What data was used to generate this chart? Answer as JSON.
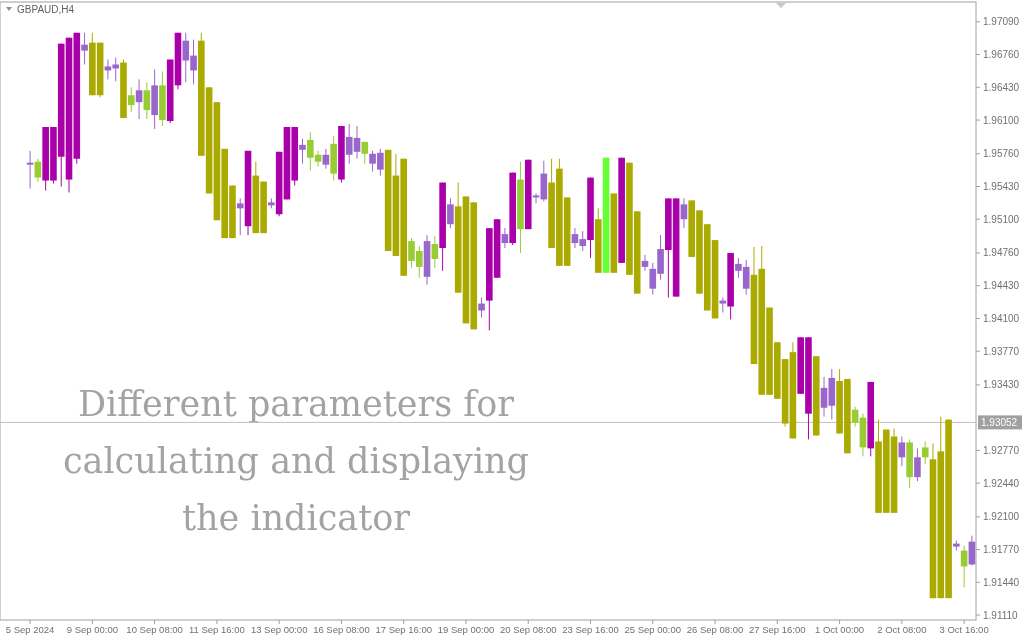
{
  "chart_data": {
    "type": "candlestick",
    "title": "GBPAUD,H4",
    "annotations": [
      "Different parameters for calculating and displaying the indicator"
    ],
    "categories": [
      "5 Sep 2024",
      null,
      null,
      null,
      null,
      null,
      null,
      null,
      "9 Sep 00:00",
      null,
      null,
      null,
      null,
      null,
      null,
      null,
      "10 Sep 08:00",
      null,
      null,
      null,
      null,
      null,
      null,
      null,
      "11 Sep 16:00",
      null,
      null,
      null,
      null,
      null,
      null,
      null,
      "13 Sep 00:00",
      null,
      null,
      null,
      null,
      null,
      null,
      null,
      "16 Sep 08:00",
      null,
      null,
      null,
      null,
      null,
      null,
      null,
      "17 Sep 16:00",
      null,
      null,
      null,
      null,
      null,
      null,
      null,
      "19 Sep 00:00",
      null,
      null,
      null,
      null,
      null,
      null,
      null,
      "20 Sep 08:00",
      null,
      null,
      null,
      null,
      null,
      null,
      null,
      "23 Sep 16:00",
      null,
      null,
      null,
      null,
      null,
      null,
      null,
      "25 Sep 00:00",
      null,
      null,
      null,
      null,
      null,
      null,
      null,
      "26 Sep 08:00",
      null,
      null,
      null,
      null,
      null,
      null,
      null,
      "27 Sep 16:00",
      null,
      null,
      null,
      null,
      null,
      null,
      null,
      "1 Oct 00:00",
      null,
      null,
      null,
      null,
      null,
      null,
      null,
      "2 Oct 08:00",
      null,
      null,
      null,
      null,
      null,
      null,
      null,
      "3 Oct 16:00",
      null
    ],
    "ohlc": [
      [
        1.9565,
        1.9579,
        1.9541,
        1.9567
      ],
      [
        1.9568,
        1.9571,
        1.9548,
        1.9552
      ],
      [
        1.9549,
        1.9603,
        1.9539,
        1.9603
      ],
      [
        1.9549,
        1.9603,
        1.9546,
        1.9603
      ],
      [
        1.9573,
        1.9687,
        1.9543,
        1.9687
      ],
      [
        1.955,
        1.9693,
        1.9537,
        1.9693
      ],
      [
        1.9571,
        1.9698,
        1.9566,
        1.9698
      ],
      [
        1.968,
        1.9698,
        1.9666,
        1.9686
      ],
      [
        1.9688,
        1.9698,
        1.9635,
        1.9635
      ],
      [
        1.9688,
        1.9688,
        1.9633,
        1.9635
      ],
      [
        1.966,
        1.9671,
        1.9651,
        1.9664
      ],
      [
        1.9662,
        1.9673,
        1.9649,
        1.9666
      ],
      [
        1.9668,
        1.9671,
        1.9612,
        1.9612
      ],
      [
        1.9635,
        1.9643,
        1.9618,
        1.9625
      ],
      [
        1.9628,
        1.9651,
        1.9611,
        1.964
      ],
      [
        1.964,
        1.9648,
        1.9611,
        1.962
      ],
      [
        1.9615,
        1.9661,
        1.9601,
        1.9645
      ],
      [
        1.9645,
        1.9659,
        1.9604,
        1.961
      ],
      [
        1.9609,
        1.9671,
        1.9607,
        1.9671
      ],
      [
        1.9645,
        1.9698,
        1.9641,
        1.9698
      ],
      [
        1.967,
        1.9698,
        1.9648,
        1.969
      ],
      [
        1.966,
        1.9691,
        1.9646,
        1.9675
      ],
      [
        1.969,
        1.9698,
        1.9574,
        1.9574
      ],
      [
        1.9643,
        1.9643,
        1.9536,
        1.9536
      ],
      [
        1.9628,
        1.9628,
        1.9509,
        1.9509
      ],
      [
        1.9581,
        1.9581,
        1.9491,
        1.9491
      ],
      [
        1.9544,
        1.9544,
        1.9491,
        1.9491
      ],
      [
        1.9521,
        1.9531,
        1.9494,
        1.9526
      ],
      [
        1.9503,
        1.9579,
        1.9494,
        1.9579
      ],
      [
        1.9554,
        1.9568,
        1.9496,
        1.9496
      ],
      [
        1.9548,
        1.9548,
        1.9496,
        1.9496
      ],
      [
        1.9524,
        1.9531,
        1.9521,
        1.9527
      ],
      [
        1.9515,
        1.9578,
        1.9513,
        1.9578
      ],
      [
        1.953,
        1.9603,
        1.953,
        1.9603
      ],
      [
        1.9549,
        1.9603,
        1.9544,
        1.9603
      ],
      [
        1.958,
        1.9591,
        1.9566,
        1.9585
      ],
      [
        1.959,
        1.9598,
        1.9559,
        1.9572
      ],
      [
        1.9575,
        1.9579,
        1.9563,
        1.9568
      ],
      [
        1.9565,
        1.9581,
        1.9561,
        1.9575
      ],
      [
        1.9586,
        1.9594,
        1.9549,
        1.9556
      ],
      [
        1.955,
        1.9604,
        1.9547,
        1.9604
      ],
      [
        1.9575,
        1.9606,
        1.9566,
        1.9593
      ],
      [
        1.9578,
        1.9604,
        1.9571,
        1.9592
      ],
      [
        1.9588,
        1.9588,
        1.9566,
        1.9576
      ],
      [
        1.9566,
        1.9579,
        1.9558,
        1.9576
      ],
      [
        1.956,
        1.9581,
        1.9554,
        1.9577
      ],
      [
        1.958,
        1.958,
        1.9478,
        1.9478
      ],
      [
        1.9554,
        1.9576,
        1.9473,
        1.9473
      ],
      [
        1.9571,
        1.9571,
        1.9453,
        1.9453
      ],
      [
        1.9488,
        1.9491,
        1.9461,
        1.9468
      ],
      [
        1.9478,
        1.9483,
        1.9451,
        1.9462
      ],
      [
        1.9452,
        1.9494,
        1.9444,
        1.9488
      ],
      [
        1.9485,
        1.9493,
        1.9461,
        1.947
      ],
      [
        1.9481,
        1.9547,
        1.9458,
        1.9547
      ],
      [
        1.9505,
        1.9531,
        1.9501,
        1.9525
      ],
      [
        1.9523,
        1.9547,
        1.9436,
        1.9436
      ],
      [
        1.9533,
        1.9533,
        1.9405,
        1.9405
      ],
      [
        1.9527,
        1.9527,
        1.9399,
        1.9399
      ],
      [
        1.9418,
        1.9431,
        1.9411,
        1.9425
      ],
      [
        1.9428,
        1.9501,
        1.9398,
        1.9501
      ],
      [
        1.9451,
        1.951,
        1.9451,
        1.951
      ],
      [
        1.9486,
        1.9501,
        1.9481,
        1.9495
      ],
      [
        1.9486,
        1.9557,
        1.9484,
        1.9557
      ],
      [
        1.955,
        1.9568,
        1.9476,
        1.95
      ],
      [
        1.95,
        1.957,
        1.95,
        1.957
      ],
      [
        1.9532,
        1.9536,
        1.9526,
        1.9534
      ],
      [
        1.953,
        1.9569,
        1.9528,
        1.9556
      ],
      [
        1.9547,
        1.9571,
        1.9481,
        1.9481
      ],
      [
        1.9561,
        1.9571,
        1.9463,
        1.9463
      ],
      [
        1.9532,
        1.9532,
        1.9463,
        1.9463
      ],
      [
        1.9486,
        1.9501,
        1.9481,
        1.9495
      ],
      [
        1.9483,
        1.9498,
        1.9478,
        1.949
      ],
      [
        1.9489,
        1.9552,
        1.9471,
        1.9552
      ],
      [
        1.951,
        1.9521,
        1.9456,
        1.9456
      ],
      [
        1.9456,
        1.9572,
        1.9456,
        1.9572
      ],
      [
        1.9536,
        1.9536,
        1.9456,
        1.9456
      ],
      [
        1.9466,
        1.9572,
        1.9466,
        1.9572
      ],
      [
        1.9567,
        1.9567,
        1.9454,
        1.9454
      ],
      [
        1.9518,
        1.9518,
        1.9435,
        1.9435
      ],
      [
        1.9462,
        1.9474,
        1.9458,
        1.9468
      ],
      [
        1.944,
        1.9466,
        1.9434,
        1.946
      ],
      [
        1.9455,
        1.9494,
        1.9449,
        1.948
      ],
      [
        1.9479,
        1.9531,
        1.9431,
        1.9531
      ],
      [
        1.9432,
        1.9531,
        1.9432,
        1.9531
      ],
      [
        1.951,
        1.9531,
        1.9501,
        1.9525
      ],
      [
        1.9529,
        1.9529,
        1.9472,
        1.9472
      ],
      [
        1.9519,
        1.9519,
        1.9435,
        1.9435
      ],
      [
        1.9505,
        1.9505,
        1.9418,
        1.9418
      ],
      [
        1.9489,
        1.9489,
        1.941,
        1.941
      ],
      [
        1.9425,
        1.9431,
        1.9416,
        1.9428
      ],
      [
        1.9422,
        1.9476,
        1.9409,
        1.9476
      ],
      [
        1.9458,
        1.9471,
        1.9451,
        1.9465
      ],
      [
        1.944,
        1.9469,
        1.9434,
        1.9462
      ],
      [
        1.9454,
        1.9482,
        1.9364,
        1.9364
      ],
      [
        1.946,
        1.9483,
        1.9333,
        1.9333
      ],
      [
        1.9421,
        1.9421,
        1.9333,
        1.9333
      ],
      [
        1.9386,
        1.9386,
        1.9329,
        1.9329
      ],
      [
        1.9369,
        1.9369,
        1.9301,
        1.9304
      ],
      [
        1.9376,
        1.9386,
        1.9289,
        1.9289
      ],
      [
        1.9334,
        1.9391,
        1.9334,
        1.9391
      ],
      [
        1.9314,
        1.9391,
        1.9288,
        1.9391
      ],
      [
        1.9372,
        1.9372,
        1.9292,
        1.9292
      ],
      [
        1.932,
        1.9351,
        1.9311,
        1.934
      ],
      [
        1.9322,
        1.9359,
        1.9308,
        1.935
      ],
      [
        1.9347,
        1.9359,
        1.9294,
        1.9294
      ],
      [
        1.9349,
        1.9349,
        1.9274,
        1.9274
      ],
      [
        1.9318,
        1.9321,
        1.9301,
        1.9305
      ],
      [
        1.931,
        1.9314,
        1.9271,
        1.928
      ],
      [
        1.9279,
        1.9346,
        1.9271,
        1.9346
      ],
      [
        1.9286,
        1.9308,
        1.9214,
        1.9214
      ],
      [
        1.9298,
        1.9298,
        1.9214,
        1.9214
      ],
      [
        1.9291,
        1.9299,
        1.9214,
        1.9214
      ],
      [
        1.927,
        1.9291,
        1.9261,
        1.9285
      ],
      [
        1.9285,
        1.9288,
        1.9239,
        1.925
      ],
      [
        1.925,
        1.9279,
        1.9246,
        1.927
      ],
      [
        1.928,
        1.9286,
        1.9263,
        1.927
      ],
      [
        1.9268,
        1.9284,
        1.9128,
        1.9128
      ],
      [
        1.9276,
        1.9311,
        1.9128,
        1.9128
      ],
      [
        1.9308,
        1.9308,
        1.9128,
        1.9128
      ],
      [
        1.918,
        1.9186,
        1.9176,
        1.9183
      ],
      [
        1.9176,
        1.9181,
        1.9139,
        1.916
      ],
      [
        1.9162,
        1.9191,
        1.9161,
        1.9185
      ]
    ],
    "colors": [
      "#9966cc",
      "#99cc33",
      "#aa00aa",
      "#aa00aa",
      "#aa00aa",
      "#aa00aa",
      "#aa00aa",
      "#9966cc",
      "#aaaa00",
      "#aaaa00",
      "#9966cc",
      "#9966cc",
      "#aaaa00",
      "#99cc33",
      "#9966cc",
      "#99cc33",
      "#9966cc",
      "#99cc33",
      "#aa00aa",
      "#aa00aa",
      "#9966cc",
      "#9966cc",
      "#aaaa00",
      "#aaaa00",
      "#aaaa00",
      "#aaaa00",
      "#aaaa00",
      "#9966cc",
      "#aa00aa",
      "#aaaa00",
      "#aaaa00",
      "#9966cc",
      "#aa00aa",
      "#aa00aa",
      "#aa00aa",
      "#9966cc",
      "#99cc33",
      "#99cc33",
      "#9966cc",
      "#99cc33",
      "#aa00aa",
      "#9966cc",
      "#9966cc",
      "#99cc33",
      "#9966cc",
      "#9966cc",
      "#aaaa00",
      "#aaaa00",
      "#aaaa00",
      "#99cc33",
      "#99cc33",
      "#9966cc",
      "#99cc33",
      "#aa00aa",
      "#9966cc",
      "#aaaa00",
      "#aaaa00",
      "#aaaa00",
      "#9966cc",
      "#aa00aa",
      "#aa00aa",
      "#9966cc",
      "#aa00aa",
      "#99cc33",
      "#aa00aa",
      "#9966cc",
      "#9966cc",
      "#aaaa00",
      "#aaaa00",
      "#aaaa00",
      "#9966cc",
      "#9966cc",
      "#aa00aa",
      "#aaaa00",
      "#66ff33",
      "#aaaa00",
      "#aa00aa",
      "#aaaa00",
      "#aaaa00",
      "#9966cc",
      "#9966cc",
      "#9966cc",
      "#aa00aa",
      "#aa00aa",
      "#9966cc",
      "#aaaa00",
      "#aaaa00",
      "#aaaa00",
      "#aaaa00",
      "#9966cc",
      "#aa00aa",
      "#9966cc",
      "#9966cc",
      "#aaaa00",
      "#aaaa00",
      "#aaaa00",
      "#aaaa00",
      "#aaaa00",
      "#aaaa00",
      "#aa00aa",
      "#aa00aa",
      "#aaaa00",
      "#9966cc",
      "#9966cc",
      "#aaaa00",
      "#aaaa00",
      "#99cc33",
      "#99cc33",
      "#aa00aa",
      "#aaaa00",
      "#aaaa00",
      "#aaaa00",
      "#9966cc",
      "#99cc33",
      "#9966cc",
      "#99cc33",
      "#aaaa00",
      "#aaaa00",
      "#aaaa00",
      "#9966cc",
      "#99cc33",
      "#9966cc"
    ],
    "ylim": [
      1.9106,
      1.9729
    ],
    "yticks": [
      {
        "value": 1.9709,
        "label": "1.97090"
      },
      {
        "value": 1.9676,
        "label": "1.96760"
      },
      {
        "value": 1.9643,
        "label": "1.96430"
      },
      {
        "value": 1.961,
        "label": "1.96100"
      },
      {
        "value": 1.9576,
        "label": "1.95760"
      },
      {
        "value": 1.9543,
        "label": "1.95430"
      },
      {
        "value": 1.951,
        "label": "1.95100"
      },
      {
        "value": 1.9476,
        "label": "1.94760"
      },
      {
        "value": 1.9443,
        "label": "1.94430"
      },
      {
        "value": 1.941,
        "label": "1.94100"
      },
      {
        "value": 1.9377,
        "label": "1.93770"
      },
      {
        "value": 1.9343,
        "label": "1.93430"
      },
      {
        "value": 1.9277,
        "label": "1.92770"
      },
      {
        "value": 1.9244,
        "label": "1.92440"
      },
      {
        "value": 1.921,
        "label": "1.92100"
      },
      {
        "value": 1.9177,
        "label": "1.91770"
      },
      {
        "value": 1.9144,
        "label": "1.91440"
      },
      {
        "value": 1.9111,
        "label": "1.91110"
      }
    ],
    "ref_lines": [
      {
        "axis": "y",
        "value": 1.93052,
        "label": "1.93052",
        "color": "#c0c0c0"
      }
    ],
    "grid": false
  }
}
